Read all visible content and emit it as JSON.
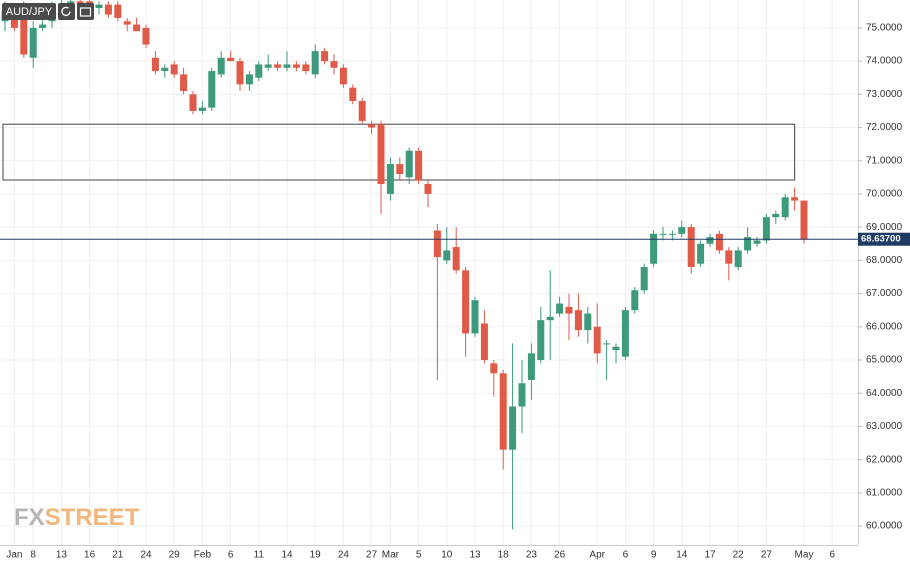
{
  "chart_data": {
    "type": "candlestick",
    "title": "AUD/JPY",
    "watermark": [
      "FX",
      "STREET"
    ],
    "categories": [
      null,
      "Jan",
      null,
      "8",
      null,
      null,
      "13",
      null,
      null,
      "16",
      null,
      null,
      "21",
      null,
      null,
      "24",
      null,
      null,
      "29",
      null,
      null,
      "Feb",
      null,
      null,
      "6",
      null,
      null,
      "11",
      null,
      null,
      "14",
      null,
      null,
      "19",
      null,
      null,
      "24",
      null,
      null,
      "27",
      null,
      "Mar",
      null,
      null,
      "5",
      null,
      null,
      "10",
      null,
      null,
      "13",
      null,
      null,
      "18",
      null,
      null,
      "23",
      null,
      null,
      "26",
      null,
      null,
      null,
      "Apr",
      null,
      null,
      "6",
      null,
      null,
      "9",
      null,
      null,
      "14",
      null,
      null,
      "17",
      null,
      null,
      "22",
      null,
      null,
      "27",
      null,
      null,
      null,
      "May",
      null,
      null,
      "6"
    ],
    "open": [
      75.2,
      75.5,
      75.6,
      74.1,
      75.0,
      75.2,
      75.5,
      75.7,
      75.8,
      75.8,
      75.6,
      75.7,
      75.7,
      75.2,
      75.1,
      75.0,
      74.1,
      73.7,
      73.9,
      73.6,
      73.0,
      72.5,
      72.6,
      73.6,
      74.1,
      74.0,
      73.3,
      73.5,
      73.8,
      73.9,
      73.8,
      73.9,
      73.9,
      73.6,
      74.3,
      74.0,
      73.8,
      73.2,
      72.8,
      72.1,
      72.1,
      70.0,
      70.9,
      70.5,
      71.3,
      70.3,
      68.9,
      68.0,
      68.4,
      67.7,
      65.8,
      66.1,
      64.9,
      64.6,
      62.3,
      63.6,
      64.4,
      65.0,
      66.2,
      66.4,
      66.6,
      66.5,
      65.9,
      66.0,
      65.5,
      65.3,
      65.1,
      66.5,
      67.1,
      67.9,
      68.8,
      68.8,
      68.8,
      69.0,
      67.9,
      68.5,
      68.8,
      68.3,
      67.8,
      68.3,
      68.5,
      68.6,
      69.3,
      69.3,
      69.9,
      69.8,
      null,
      null,
      null
    ],
    "high": [
      75.8,
      75.7,
      75.8,
      75.2,
      75.3,
      75.8,
      75.9,
      75.9,
      75.9,
      75.9,
      75.8,
      75.8,
      75.8,
      75.3,
      75.3,
      75.1,
      74.3,
      73.9,
      74.0,
      73.8,
      73.1,
      72.8,
      73.8,
      74.3,
      74.3,
      74.1,
      73.7,
      74.0,
      74.2,
      74.0,
      74.3,
      74.0,
      74.0,
      74.5,
      74.4,
      74.2,
      73.9,
      73.3,
      72.9,
      72.2,
      72.2,
      71.1,
      71.1,
      71.4,
      71.4,
      70.4,
      69.1,
      69.0,
      69.0,
      67.8,
      66.9,
      66.5,
      65.0,
      64.7,
      65.5,
      65.0,
      65.5,
      66.6,
      67.7,
      66.9,
      67.0,
      67.0,
      66.6,
      66.7,
      65.6,
      65.5,
      66.6,
      67.2,
      67.9,
      68.9,
      69.0,
      68.9,
      69.2,
      69.1,
      68.6,
      68.8,
      68.9,
      68.4,
      68.4,
      69.0,
      68.7,
      69.4,
      69.5,
      70.0,
      70.2,
      69.8,
      null,
      null,
      null
    ],
    "low": [
      74.9,
      74.9,
      74.1,
      73.8,
      74.9,
      75.0,
      75.3,
      75.5,
      75.6,
      75.5,
      75.4,
      75.3,
      75.2,
      74.9,
      74.9,
      74.4,
      73.6,
      73.5,
      73.5,
      73.0,
      72.4,
      72.4,
      72.5,
      73.5,
      74.0,
      73.1,
      73.1,
      73.4,
      73.7,
      73.7,
      73.7,
      73.7,
      73.6,
      73.5,
      73.9,
      73.6,
      73.2,
      72.7,
      72.1,
      71.8,
      69.4,
      69.8,
      70.4,
      70.3,
      70.3,
      69.6,
      64.4,
      67.9,
      67.6,
      65.1,
      65.7,
      64.9,
      63.9,
      61.7,
      59.9,
      62.8,
      63.8,
      64.9,
      65.0,
      66.3,
      65.6,
      65.7,
      65.5,
      64.9,
      64.4,
      64.9,
      65.0,
      66.4,
      67.0,
      67.8,
      68.6,
      68.6,
      68.7,
      67.6,
      67.8,
      68.4,
      68.2,
      67.4,
      67.7,
      68.2,
      68.4,
      68.5,
      69.1,
      69.2,
      69.5,
      68.5,
      null,
      null,
      null
    ],
    "close": [
      75.5,
      75.0,
      74.2,
      75.0,
      75.1,
      75.6,
      75.7,
      75.8,
      75.7,
      75.6,
      75.7,
      75.4,
      75.3,
      75.1,
      74.9,
      74.5,
      73.7,
      73.8,
      73.6,
      73.1,
      72.5,
      72.6,
      73.7,
      74.1,
      74.0,
      73.3,
      73.6,
      73.9,
      73.9,
      73.8,
      73.9,
      73.8,
      73.7,
      74.3,
      74.0,
      73.8,
      73.3,
      72.8,
      72.2,
      72.0,
      70.3,
      70.9,
      70.6,
      71.3,
      70.4,
      70.0,
      68.1,
      68.3,
      67.7,
      65.8,
      66.8,
      65.0,
      64.6,
      62.3,
      63.6,
      64.3,
      65.2,
      66.2,
      66.3,
      66.7,
      66.4,
      65.9,
      66.4,
      65.2,
      65.5,
      65.4,
      66.5,
      67.1,
      67.8,
      68.8,
      68.8,
      68.8,
      69.0,
      67.8,
      68.5,
      68.7,
      68.3,
      67.9,
      68.3,
      68.7,
      68.6,
      69.3,
      69.4,
      69.9,
      69.8,
      68.637,
      null,
      null,
      null
    ],
    "up_color": "#3d9a7c",
    "down_color": "#e05a48",
    "ylim": [
      59.43,
      75.84
    ],
    "yticks": [
      {
        "value": 60,
        "label": "60.0000"
      },
      {
        "value": 61,
        "label": "61.0000"
      },
      {
        "value": 62,
        "label": "62.0000"
      },
      {
        "value": 63,
        "label": "63.0000"
      },
      {
        "value": 64,
        "label": "64.0000"
      },
      {
        "value": 65,
        "label": "65.0000"
      },
      {
        "value": 66,
        "label": "66.0000"
      },
      {
        "value": 67,
        "label": "67.0000"
      },
      {
        "value": 68,
        "label": "68.0000"
      },
      {
        "value": 69,
        "label": "69.0000"
      },
      {
        "value": 70,
        "label": "70.0000"
      },
      {
        "value": 71,
        "label": "71.0000"
      },
      {
        "value": 72,
        "label": "72.0000"
      },
      {
        "value": 73,
        "label": "73.0000"
      },
      {
        "value": 74,
        "label": "74.0000"
      },
      {
        "value": 75,
        "label": "75.0000"
      }
    ],
    "zone": {
      "top": 72.1,
      "bottom": 70.42
    },
    "last_price": {
      "value": 68.637,
      "label": "68.63700"
    },
    "grid": true
  }
}
